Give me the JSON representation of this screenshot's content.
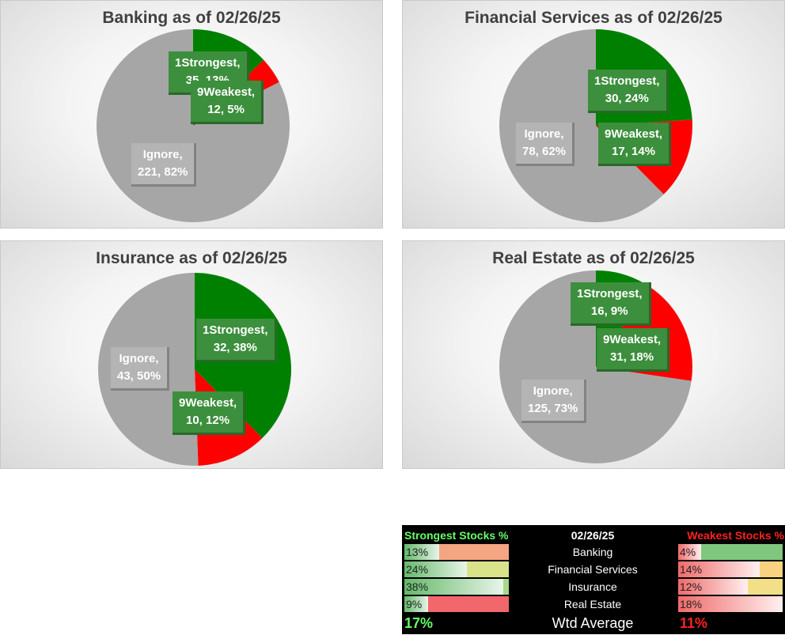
{
  "chart_data": [
    {
      "type": "pie",
      "title": "Banking as of 02/26/25",
      "slices": [
        {
          "name": "1Strongest",
          "value": 35,
          "percent": "13%",
          "color": "#008000"
        },
        {
          "name": "9Weakest",
          "value": 12,
          "percent": "5%",
          "color": "#ff0000"
        },
        {
          "name": "Ignore",
          "value": 221,
          "percent": "82%",
          "color": "#a6a6a6"
        }
      ]
    },
    {
      "type": "pie",
      "title": "Financial Services as of 02/26/25",
      "slices": [
        {
          "name": "1Strongest",
          "value": 30,
          "percent": "24%",
          "color": "#008000"
        },
        {
          "name": "9Weakest",
          "value": 17,
          "percent": "14%",
          "color": "#ff0000"
        },
        {
          "name": "Ignore",
          "value": 78,
          "percent": "62%",
          "color": "#a6a6a6"
        }
      ]
    },
    {
      "type": "pie",
      "title": "Insurance as of 02/26/25",
      "slices": [
        {
          "name": "1Strongest",
          "value": 32,
          "percent": "38%",
          "color": "#008000"
        },
        {
          "name": "9Weakest",
          "value": 10,
          "percent": "12%",
          "color": "#ff0000"
        },
        {
          "name": "Ignore",
          "value": 43,
          "percent": "50%",
          "color": "#a6a6a6"
        }
      ]
    },
    {
      "type": "pie",
      "title": "Real Estate as of 02/26/25",
      "slices": [
        {
          "name": "1Strongest",
          "value": 16,
          "percent": "9%",
          "color": "#008000"
        },
        {
          "name": "9Weakest",
          "value": 31,
          "percent": "18%",
          "color": "#ff0000"
        },
        {
          "name": "Ignore",
          "value": 125,
          "percent": "73%",
          "color": "#a6a6a6"
        }
      ]
    },
    {
      "type": "table",
      "header": {
        "strongest": "Strongest Stocks %",
        "date": "02/26/25",
        "weakest": "Weakest Stocks %"
      },
      "rows": [
        {
          "sector": "Banking",
          "strongest": 13,
          "strongest_label": "13%",
          "weakest": 4,
          "weakest_label": "4%",
          "left_color": "#f4a582",
          "right_color": "#7fc77f"
        },
        {
          "sector": "Financial Services",
          "strongest": 24,
          "strongest_label": "24%",
          "weakest": 14,
          "weakest_label": "14%",
          "left_color": "#d9e38a",
          "right_color": "#f9d27f"
        },
        {
          "sector": "Insurance",
          "strongest": 38,
          "strongest_label": "38%",
          "weakest": 12,
          "weakest_label": "12%",
          "left_color": "#a6d98c",
          "right_color": "#f2df88"
        },
        {
          "sector": "Real Estate",
          "strongest": 9,
          "strongest_label": "9%",
          "weakest": 18,
          "weakest_label": "18%",
          "left_color": "#f2676b",
          "right_color": "#f2676b"
        }
      ],
      "footer": {
        "strongest": "17%",
        "label": "Wtd Average",
        "weakest": "11%"
      }
    }
  ]
}
